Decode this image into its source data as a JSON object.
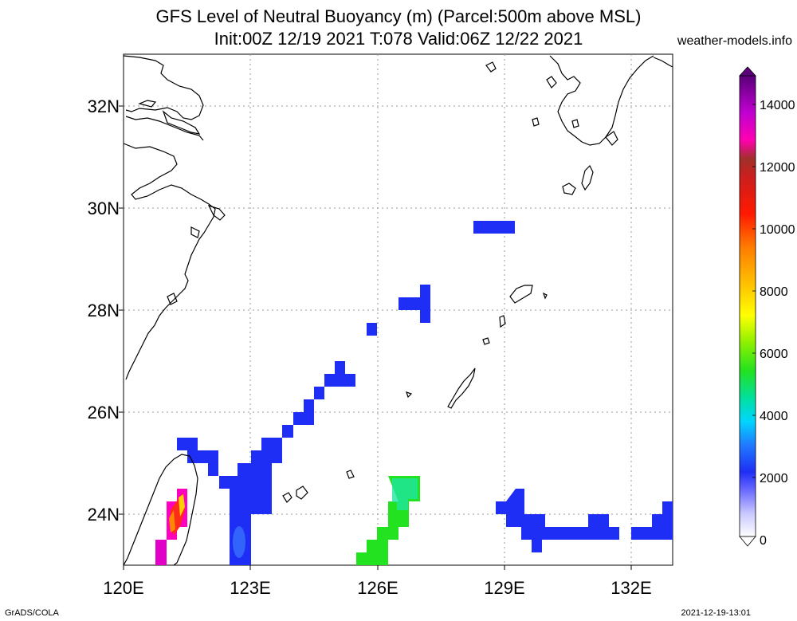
{
  "title_line1": "GFS Level of Neutral Buoyancy (m) (Parcel:500m above MSL)",
  "title_line2": "Init:00Z 12/19 2021 T:078 Valid:06Z 12/22 2021",
  "site": "weather-models.info",
  "footer_left": "GrADS/COLA",
  "footer_right": "2021-12-19-13:01",
  "lat_labels": [
    "32N",
    "30N",
    "28N",
    "26N",
    "24N"
  ],
  "lon_labels": [
    "120E",
    "123E",
    "126E",
    "129E",
    "132E"
  ],
  "colorbar_labels": [
    "14000",
    "12000",
    "10000",
    "8000",
    "6000",
    "4000",
    "2000",
    "0"
  ],
  "colors": {
    "blue": "#1f2ef5",
    "green": "#23e21f",
    "land_outline": "#000000"
  }
}
